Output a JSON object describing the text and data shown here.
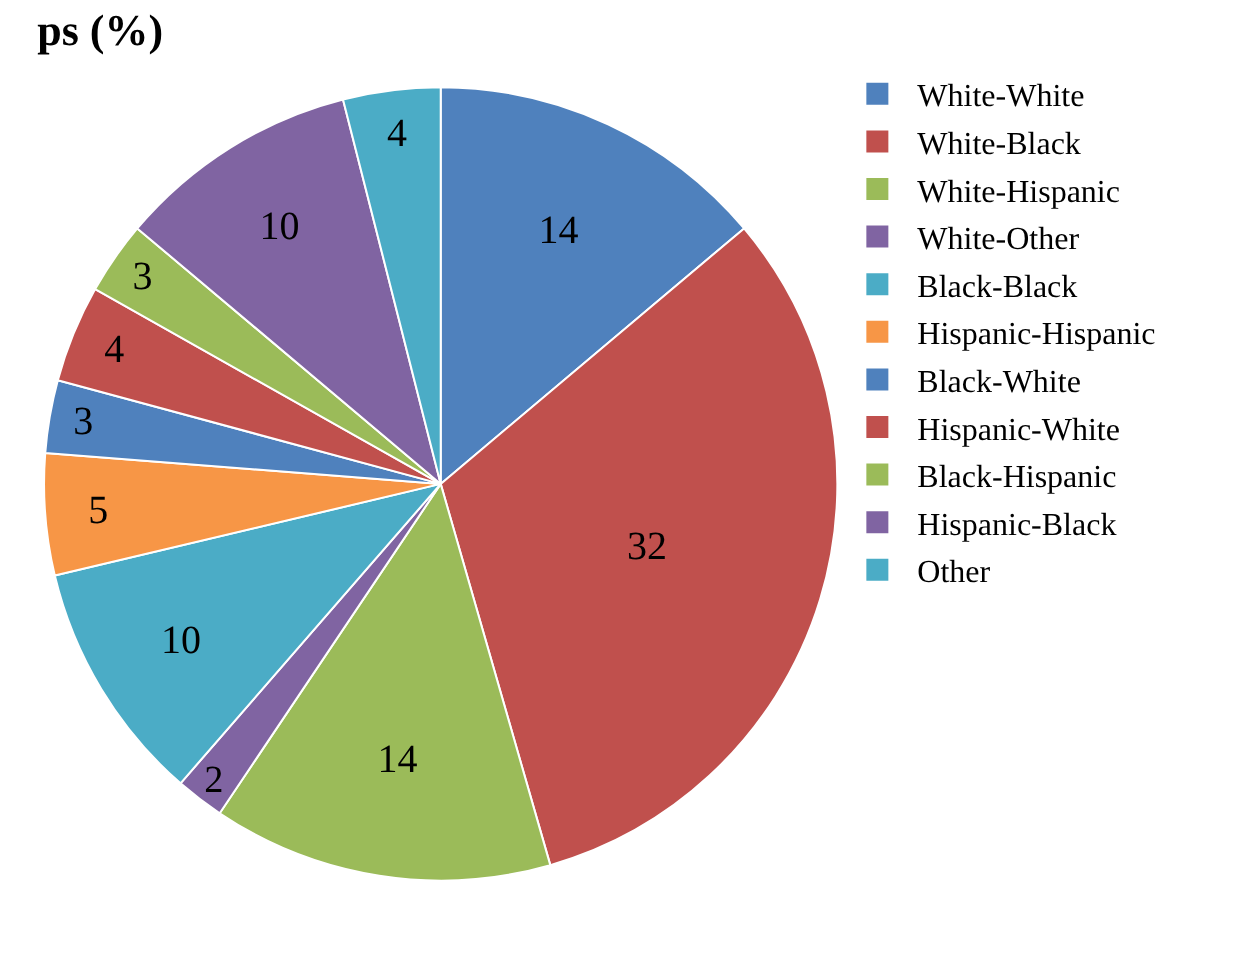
{
  "chart_data": {
    "type": "pie",
    "title": "ps (%)",
    "categories": [
      "White-White",
      "White-Black",
      "White-Hispanic",
      "White-Other",
      "Black-Black",
      "Hispanic-Hispanic",
      "Black-White",
      "Hispanic-White",
      "Black-Hispanic",
      "Hispanic-Black",
      "Other"
    ],
    "values": [
      14,
      32,
      14,
      2,
      10,
      5,
      3,
      4,
      3,
      10,
      4
    ],
    "colors": [
      "#4f81bd",
      "#c0504d",
      "#9bbb59",
      "#8064a2",
      "#4bacc6",
      "#f79646",
      "#4f81bd",
      "#c0504d",
      "#9bbb59",
      "#8064a2",
      "#4bacc6"
    ],
    "data_labels": true,
    "legend": "top right"
  }
}
